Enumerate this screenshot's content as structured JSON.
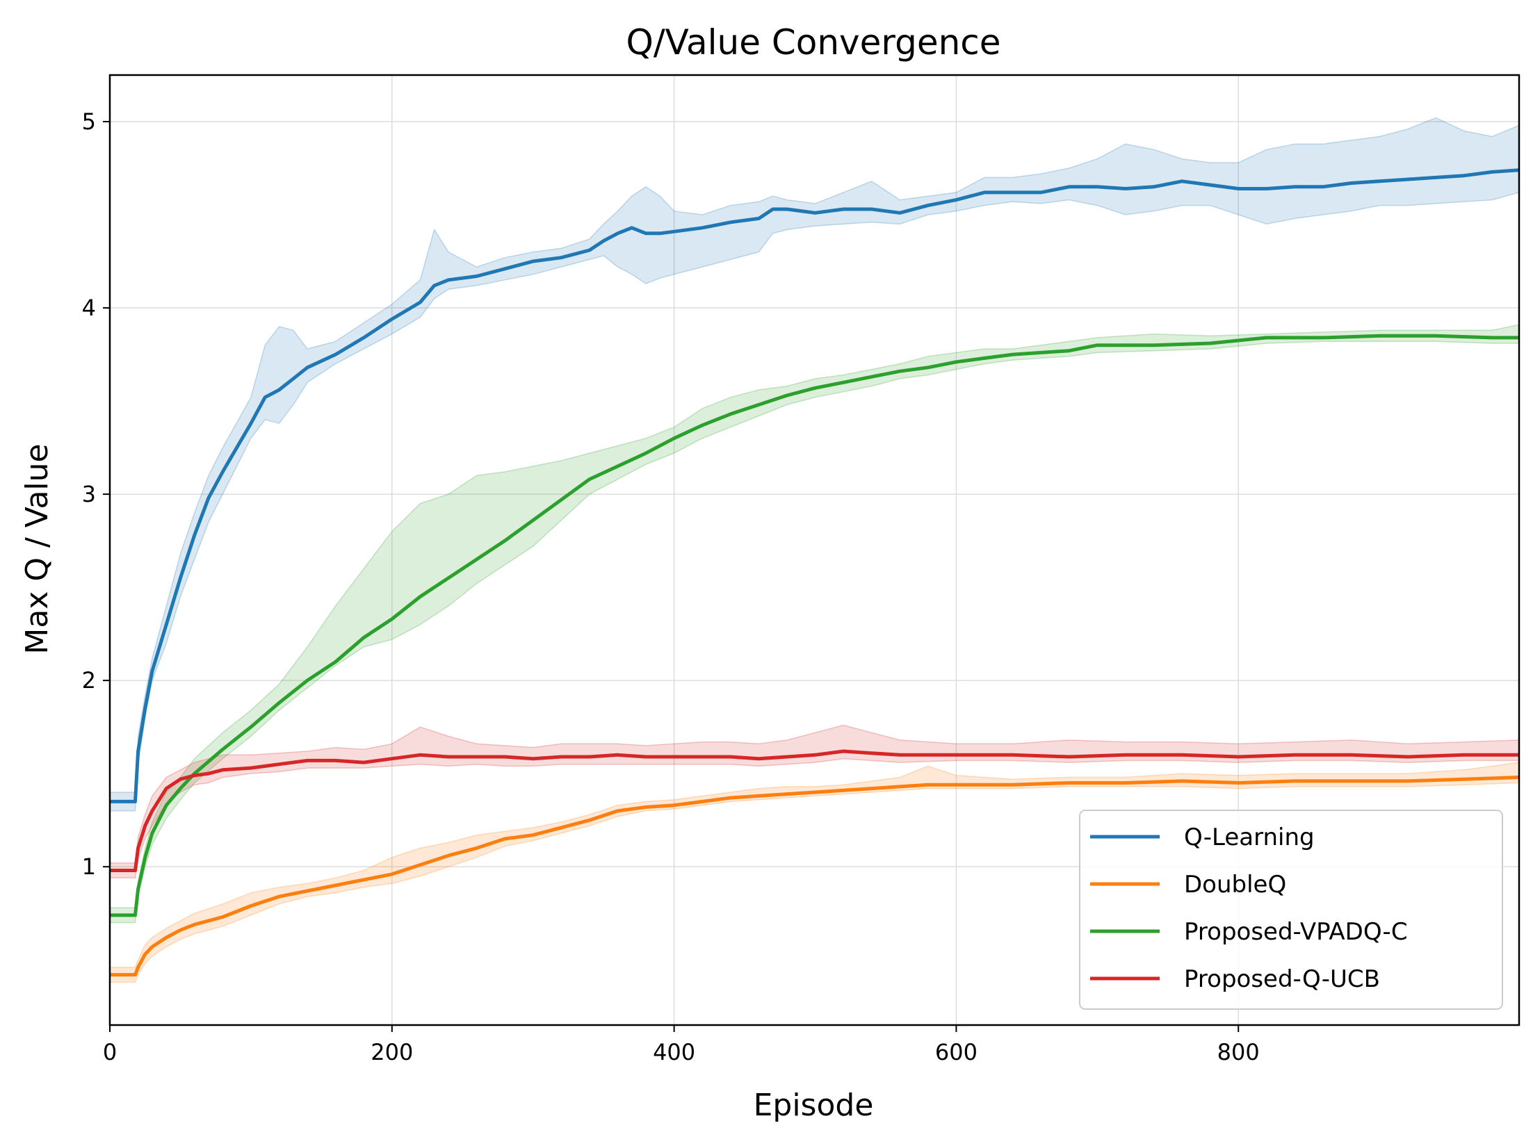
{
  "chart_data": {
    "type": "line",
    "title": "Q/Value Convergence",
    "xlabel": "Episode",
    "ylabel": "Max Q / Value",
    "xlim": [
      0,
      999
    ],
    "ylim": [
      0.15,
      5.25
    ],
    "xticks": [
      0,
      200,
      400,
      600,
      800
    ],
    "yticks": [
      1,
      2,
      3,
      4,
      5
    ],
    "grid": true,
    "legend_position": "bottom-right",
    "series": [
      {
        "name": "Q-Learning",
        "color": "#1f77b4",
        "x": [
          0,
          18,
          20,
          25,
          30,
          40,
          50,
          60,
          70,
          80,
          100,
          110,
          120,
          130,
          140,
          160,
          180,
          200,
          220,
          230,
          240,
          260,
          280,
          300,
          320,
          340,
          350,
          360,
          370,
          380,
          390,
          400,
          420,
          440,
          460,
          470,
          480,
          500,
          520,
          540,
          560,
          580,
          600,
          620,
          640,
          660,
          680,
          700,
          720,
          740,
          760,
          780,
          800,
          820,
          840,
          860,
          880,
          900,
          920,
          940,
          960,
          980,
          999
        ],
        "values": [
          1.35,
          1.35,
          1.62,
          1.85,
          2.05,
          2.3,
          2.55,
          2.78,
          2.98,
          3.12,
          3.38,
          3.52,
          3.56,
          3.62,
          3.68,
          3.75,
          3.84,
          3.94,
          4.03,
          4.12,
          4.15,
          4.17,
          4.21,
          4.25,
          4.27,
          4.31,
          4.36,
          4.4,
          4.43,
          4.4,
          4.4,
          4.41,
          4.43,
          4.46,
          4.48,
          4.53,
          4.53,
          4.51,
          4.53,
          4.53,
          4.51,
          4.55,
          4.58,
          4.62,
          4.62,
          4.62,
          4.65,
          4.65,
          4.64,
          4.65,
          4.68,
          4.66,
          4.64,
          4.64,
          4.65,
          4.65,
          4.67,
          4.68,
          4.69,
          4.7,
          4.71,
          4.73,
          4.74
        ],
        "band_low": [
          1.3,
          1.3,
          1.55,
          1.8,
          2.0,
          2.2,
          2.45,
          2.65,
          2.85,
          3.0,
          3.3,
          3.4,
          3.38,
          3.48,
          3.6,
          3.7,
          3.78,
          3.86,
          3.95,
          4.05,
          4.1,
          4.12,
          4.15,
          4.18,
          4.22,
          4.26,
          4.28,
          4.22,
          4.18,
          4.13,
          4.16,
          4.18,
          4.22,
          4.26,
          4.3,
          4.4,
          4.42,
          4.44,
          4.45,
          4.46,
          4.45,
          4.5,
          4.52,
          4.55,
          4.57,
          4.56,
          4.58,
          4.55,
          4.5,
          4.52,
          4.55,
          4.55,
          4.5,
          4.45,
          4.48,
          4.5,
          4.52,
          4.55,
          4.55,
          4.56,
          4.57,
          4.58,
          4.62
        ],
        "band_high": [
          1.4,
          1.4,
          1.7,
          1.92,
          2.12,
          2.4,
          2.68,
          2.9,
          3.1,
          3.25,
          3.52,
          3.8,
          3.9,
          3.88,
          3.78,
          3.82,
          3.92,
          4.02,
          4.15,
          4.42,
          4.3,
          4.22,
          4.27,
          4.3,
          4.32,
          4.37,
          4.45,
          4.52,
          4.6,
          4.65,
          4.6,
          4.52,
          4.5,
          4.55,
          4.57,
          4.6,
          4.58,
          4.56,
          4.62,
          4.68,
          4.58,
          4.6,
          4.62,
          4.7,
          4.7,
          4.72,
          4.75,
          4.8,
          4.88,
          4.85,
          4.8,
          4.78,
          4.78,
          4.85,
          4.88,
          4.88,
          4.9,
          4.92,
          4.96,
          5.02,
          4.95,
          4.92,
          4.98
        ]
      },
      {
        "name": "DoubleQ",
        "color": "#ff7f0e",
        "x": [
          0,
          18,
          20,
          25,
          30,
          40,
          50,
          60,
          80,
          100,
          120,
          140,
          160,
          180,
          200,
          220,
          240,
          260,
          280,
          300,
          320,
          340,
          360,
          380,
          400,
          420,
          440,
          460,
          480,
          500,
          520,
          540,
          560,
          580,
          600,
          640,
          680,
          720,
          760,
          800,
          840,
          880,
          920,
          960,
          999
        ],
        "values": [
          0.42,
          0.42,
          0.46,
          0.53,
          0.57,
          0.62,
          0.66,
          0.69,
          0.73,
          0.79,
          0.84,
          0.87,
          0.9,
          0.93,
          0.96,
          1.01,
          1.06,
          1.1,
          1.15,
          1.17,
          1.21,
          1.25,
          1.3,
          1.32,
          1.33,
          1.35,
          1.37,
          1.38,
          1.39,
          1.4,
          1.41,
          1.42,
          1.43,
          1.44,
          1.44,
          1.44,
          1.45,
          1.45,
          1.46,
          1.45,
          1.46,
          1.46,
          1.46,
          1.47,
          1.48
        ],
        "band_low": [
          0.38,
          0.38,
          0.42,
          0.48,
          0.52,
          0.57,
          0.61,
          0.64,
          0.68,
          0.74,
          0.8,
          0.84,
          0.86,
          0.89,
          0.91,
          0.95,
          1.0,
          1.05,
          1.11,
          1.14,
          1.18,
          1.22,
          1.27,
          1.3,
          1.31,
          1.33,
          1.35,
          1.36,
          1.37,
          1.38,
          1.39,
          1.4,
          1.41,
          1.42,
          1.42,
          1.42,
          1.43,
          1.43,
          1.43,
          1.42,
          1.43,
          1.43,
          1.43,
          1.44,
          1.45
        ],
        "band_high": [
          0.46,
          0.46,
          0.5,
          0.58,
          0.62,
          0.67,
          0.71,
          0.75,
          0.8,
          0.86,
          0.89,
          0.91,
          0.94,
          0.98,
          1.05,
          1.1,
          1.13,
          1.17,
          1.19,
          1.21,
          1.24,
          1.28,
          1.33,
          1.35,
          1.36,
          1.38,
          1.4,
          1.42,
          1.43,
          1.43,
          1.44,
          1.46,
          1.48,
          1.54,
          1.49,
          1.47,
          1.48,
          1.48,
          1.5,
          1.49,
          1.5,
          1.5,
          1.5,
          1.52,
          1.56
        ]
      },
      {
        "name": "Proposed-VPADQ-C",
        "color": "#2ca02c",
        "x": [
          0,
          18,
          20,
          25,
          30,
          40,
          50,
          60,
          80,
          100,
          120,
          140,
          160,
          180,
          200,
          220,
          240,
          260,
          280,
          300,
          320,
          340,
          360,
          380,
          400,
          420,
          440,
          460,
          480,
          500,
          520,
          540,
          560,
          580,
          600,
          620,
          640,
          680,
          700,
          740,
          780,
          820,
          860,
          900,
          940,
          980,
          999
        ],
        "values": [
          0.74,
          0.74,
          0.88,
          1.05,
          1.18,
          1.33,
          1.42,
          1.5,
          1.63,
          1.75,
          1.88,
          2.0,
          2.1,
          2.23,
          2.33,
          2.45,
          2.55,
          2.65,
          2.75,
          2.86,
          2.97,
          3.08,
          3.15,
          3.22,
          3.3,
          3.37,
          3.43,
          3.48,
          3.53,
          3.57,
          3.6,
          3.63,
          3.66,
          3.68,
          3.71,
          3.73,
          3.75,
          3.77,
          3.8,
          3.8,
          3.81,
          3.84,
          3.84,
          3.85,
          3.85,
          3.84,
          3.84
        ],
        "band_low": [
          0.7,
          0.7,
          0.84,
          1.0,
          1.12,
          1.26,
          1.36,
          1.45,
          1.58,
          1.7,
          1.84,
          1.96,
          2.08,
          2.18,
          2.22,
          2.3,
          2.4,
          2.52,
          2.62,
          2.72,
          2.86,
          3.0,
          3.08,
          3.16,
          3.22,
          3.3,
          3.36,
          3.42,
          3.48,
          3.52,
          3.55,
          3.58,
          3.62,
          3.64,
          3.67,
          3.7,
          3.72,
          3.74,
          3.76,
          3.77,
          3.78,
          3.81,
          3.82,
          3.82,
          3.82,
          3.81,
          3.81
        ],
        "band_high": [
          0.78,
          0.78,
          0.92,
          1.1,
          1.24,
          1.4,
          1.48,
          1.58,
          1.72,
          1.84,
          1.98,
          2.18,
          2.4,
          2.6,
          2.8,
          2.95,
          3.0,
          3.1,
          3.12,
          3.15,
          3.18,
          3.22,
          3.26,
          3.3,
          3.36,
          3.46,
          3.52,
          3.56,
          3.58,
          3.62,
          3.64,
          3.67,
          3.7,
          3.74,
          3.76,
          3.78,
          3.78,
          3.82,
          3.84,
          3.86,
          3.85,
          3.86,
          3.87,
          3.88,
          3.88,
          3.88,
          3.91
        ]
      },
      {
        "name": "Proposed-Q-UCB",
        "color": "#d62728",
        "x": [
          0,
          18,
          20,
          25,
          30,
          40,
          50,
          60,
          70,
          80,
          100,
          120,
          140,
          160,
          180,
          200,
          220,
          240,
          260,
          280,
          300,
          320,
          340,
          360,
          380,
          400,
          420,
          440,
          460,
          480,
          500,
          520,
          540,
          560,
          600,
          640,
          680,
          720,
          760,
          800,
          840,
          880,
          920,
          960,
          999
        ],
        "values": [
          0.98,
          0.98,
          1.1,
          1.22,
          1.3,
          1.42,
          1.47,
          1.49,
          1.5,
          1.52,
          1.53,
          1.55,
          1.57,
          1.57,
          1.56,
          1.58,
          1.6,
          1.59,
          1.59,
          1.59,
          1.58,
          1.59,
          1.59,
          1.6,
          1.59,
          1.59,
          1.59,
          1.59,
          1.58,
          1.59,
          1.6,
          1.62,
          1.61,
          1.6,
          1.6,
          1.6,
          1.59,
          1.6,
          1.6,
          1.59,
          1.6,
          1.6,
          1.59,
          1.6,
          1.6
        ],
        "band_low": [
          0.94,
          0.94,
          1.04,
          1.15,
          1.22,
          1.34,
          1.4,
          1.44,
          1.45,
          1.48,
          1.5,
          1.51,
          1.53,
          1.53,
          1.53,
          1.54,
          1.55,
          1.54,
          1.55,
          1.54,
          1.54,
          1.55,
          1.55,
          1.55,
          1.55,
          1.55,
          1.55,
          1.55,
          1.54,
          1.55,
          1.56,
          1.58,
          1.57,
          1.56,
          1.57,
          1.57,
          1.56,
          1.57,
          1.57,
          1.56,
          1.57,
          1.57,
          1.56,
          1.57,
          1.57
        ],
        "band_high": [
          1.02,
          1.02,
          1.16,
          1.28,
          1.38,
          1.48,
          1.52,
          1.56,
          1.58,
          1.6,
          1.6,
          1.61,
          1.62,
          1.64,
          1.63,
          1.66,
          1.75,
          1.7,
          1.66,
          1.65,
          1.64,
          1.66,
          1.66,
          1.66,
          1.65,
          1.66,
          1.67,
          1.67,
          1.66,
          1.68,
          1.72,
          1.76,
          1.72,
          1.68,
          1.66,
          1.66,
          1.68,
          1.67,
          1.67,
          1.66,
          1.67,
          1.68,
          1.66,
          1.67,
          1.68
        ]
      }
    ]
  }
}
